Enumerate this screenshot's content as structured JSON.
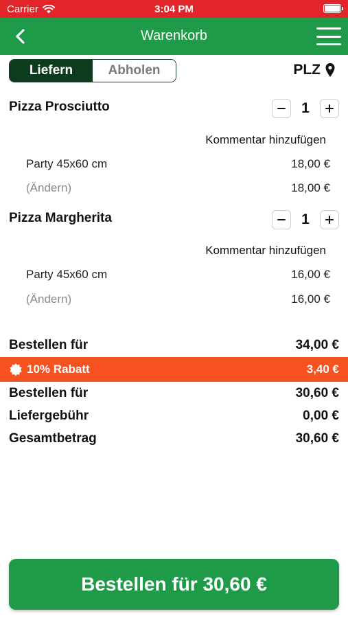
{
  "status_bar": {
    "carrier": "Carrier",
    "time": "3:04 PM"
  },
  "nav": {
    "title": "Warenkorb"
  },
  "segment": {
    "deliver": "Liefern",
    "pickup": "Abholen",
    "selected": "Liefern"
  },
  "plz": {
    "label": "PLZ"
  },
  "items": [
    {
      "name": "Pizza Prosciutto",
      "quantity": "1",
      "comment_label": "Kommentar hinzufügen",
      "size": "Party 45x60 cm",
      "size_price": "18,00 €",
      "change_label": "(Ändern)",
      "total_price": "18,00 €"
    },
    {
      "name": "Pizza Margherita",
      "quantity": "1",
      "comment_label": "Kommentar hinzufügen",
      "size": "Party 45x60 cm",
      "size_price": "16,00 €",
      "change_label": "(Ändern)",
      "total_price": "16,00 €"
    }
  ],
  "summary": {
    "subtotal_label": "Bestellen für",
    "subtotal_value": "34,00 €",
    "discount_label": "10% Rabatt",
    "discount_value": "3,40 €",
    "after_discount_label": "Bestellen für",
    "after_discount_value": "30,60 €",
    "delivery_fee_label": "Liefergebühr",
    "delivery_fee_value": "0,00 €",
    "total_label": "Gesamtbetrag",
    "total_value": "30,60 €"
  },
  "order_button": {
    "label": "Bestellen für 30,60 €"
  },
  "colors": {
    "status_bar": "#e2242b",
    "nav_bar": "#1f9a48",
    "segment_active": "#0c3b1e",
    "discount_bar": "#f6521f",
    "order_button": "#1f9a48"
  },
  "icons": {
    "back": "chevron-left-icon",
    "menu": "hamburger-menu-icon",
    "location": "location-pin-icon",
    "wifi": "wifi-icon",
    "battery": "battery-icon",
    "discount": "badge-icon"
  }
}
